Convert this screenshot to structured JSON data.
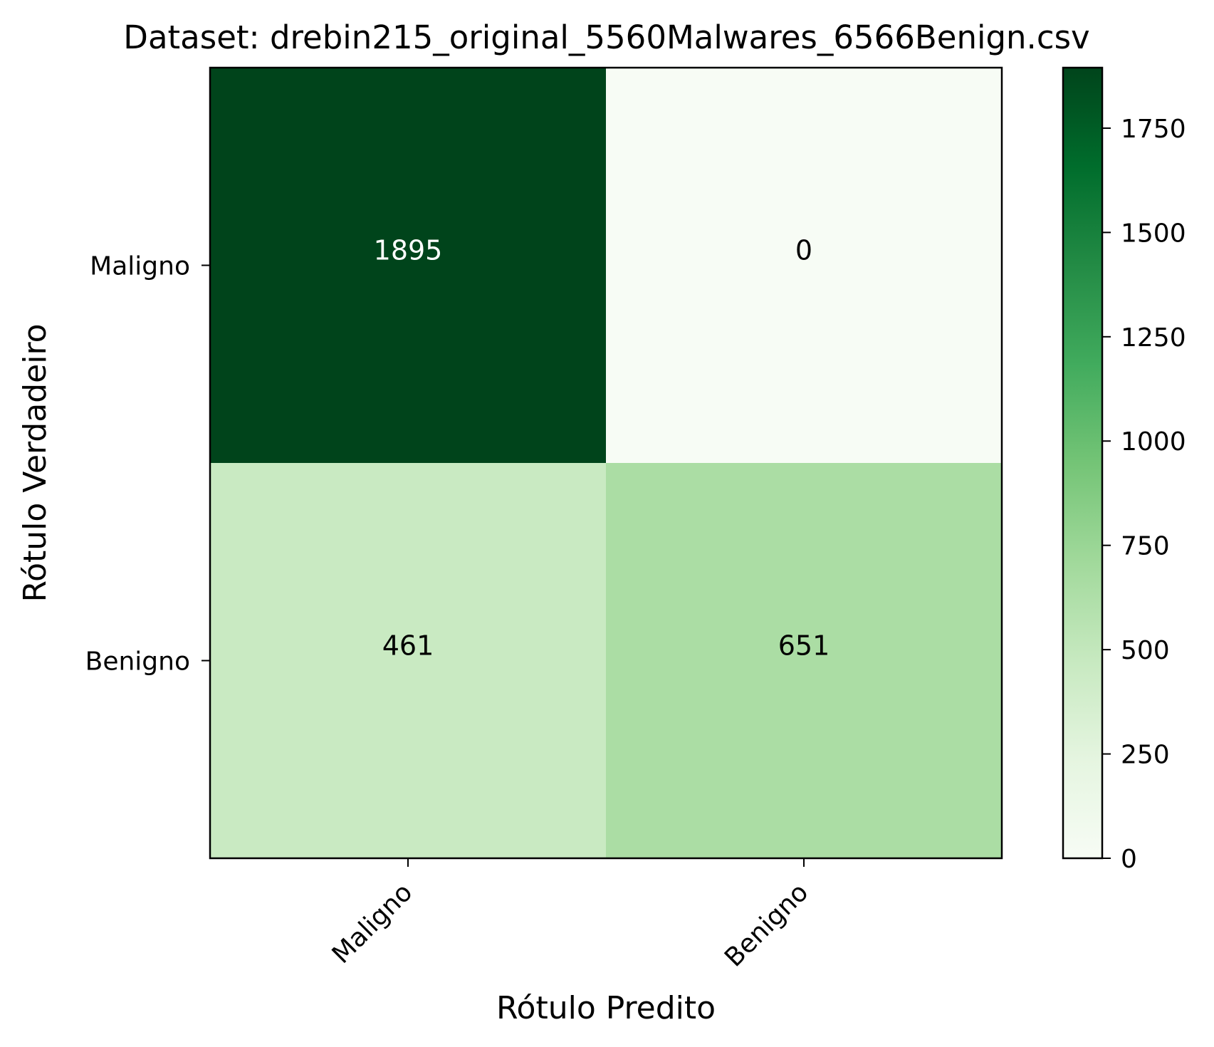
{
  "chart_data": {
    "type": "heatmap",
    "title": "Dataset: drebin215_original_5560Malwares_6566Benign.csv",
    "xlabel": "Rótulo Predito",
    "ylabel": "Rótulo Verdadeiro",
    "x_categories": [
      "Maligno",
      "Benigno"
    ],
    "y_categories": [
      "Maligno",
      "Benigno"
    ],
    "values": [
      [
        1895,
        0
      ],
      [
        461,
        651
      ]
    ],
    "cell_labels": [
      [
        "1895",
        "0"
      ],
      [
        "461",
        "651"
      ]
    ],
    "colormap": "Greens",
    "color_range": [
      0,
      1895
    ],
    "colorbar": {
      "ticks": [
        0,
        250,
        500,
        750,
        1000,
        1250,
        1500,
        1750
      ],
      "tick_labels": [
        "0",
        "250",
        "500",
        "750",
        "1000",
        "1250",
        "1500",
        "1750"
      ]
    },
    "x_tick_rotation": "45 degrees",
    "grid": false
  }
}
